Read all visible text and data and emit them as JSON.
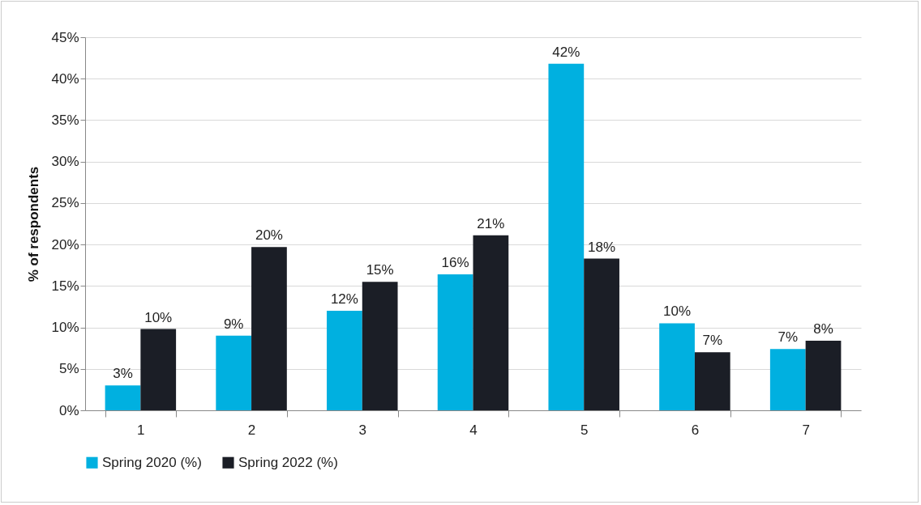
{
  "chart_data": {
    "type": "bar",
    "ylabel": "% of respondents",
    "categories": [
      "1",
      "2",
      "3",
      "4",
      "5",
      "6",
      "7"
    ],
    "series": [
      {
        "name": "Spring 2020 (%)",
        "color": "#00b0e0",
        "values": [
          3.0,
          9.0,
          12.0,
          16.4,
          41.8,
          10.5,
          7.4
        ],
        "value_labels": [
          "3%",
          "9%",
          "12%",
          "16%",
          "42%",
          "10%",
          "7%"
        ]
      },
      {
        "name": "Spring 2022 (%)",
        "color": "#1b1e26",
        "values": [
          9.8,
          19.7,
          15.5,
          21.1,
          18.3,
          7.0,
          8.4
        ],
        "value_labels": [
          "10%",
          "20%",
          "15%",
          "21%",
          "18%",
          "7%",
          "8%"
        ]
      }
    ],
    "ylim": [
      0,
      45
    ],
    "yticks": [
      {
        "value": 0,
        "label": "0%"
      },
      {
        "value": 5,
        "label": "5%"
      },
      {
        "value": 10,
        "label": "10%"
      },
      {
        "value": 15,
        "label": "15%"
      },
      {
        "value": 20,
        "label": "20%"
      },
      {
        "value": 25,
        "label": "25%"
      },
      {
        "value": 30,
        "label": "30%"
      },
      {
        "value": 35,
        "label": "35%"
      },
      {
        "value": 40,
        "label": "40%"
      },
      {
        "value": 45,
        "label": "45%"
      }
    ],
    "grid": "y",
    "legend": "bottom"
  }
}
